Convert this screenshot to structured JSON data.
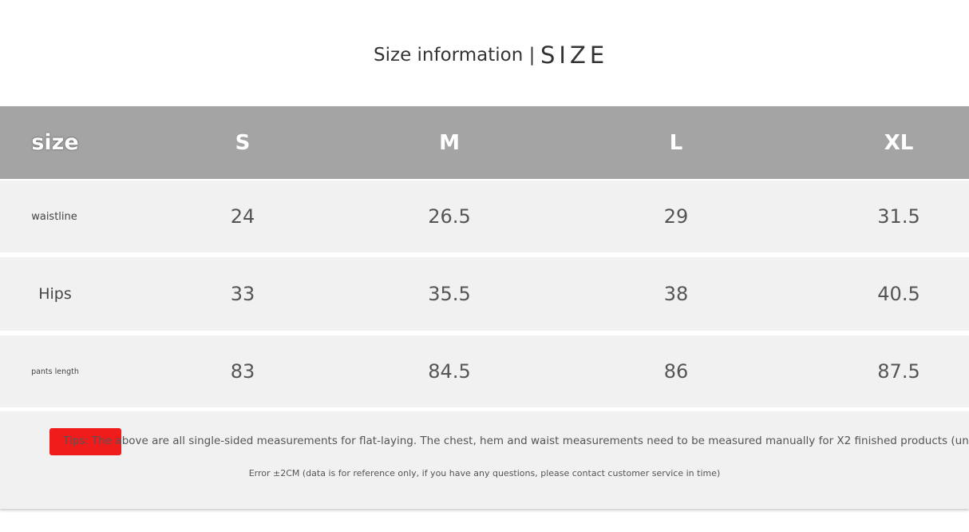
{
  "title": {
    "left": "Size information |",
    "right": "SIZE"
  },
  "header": {
    "label": "size",
    "sizes": [
      "S",
      "M",
      "L",
      "XL"
    ]
  },
  "rows": [
    {
      "label": "waistline",
      "values": [
        "24",
        "26.5",
        "29",
        "31.5"
      ]
    },
    {
      "label": "Hips",
      "values": [
        "33",
        "35.5",
        "38",
        "40.5"
      ]
    },
    {
      "label": "pants length",
      "values": [
        "83",
        "84.5",
        "86",
        "87.5"
      ]
    }
  ],
  "footer": {
    "tips": "Tips: The above are all single-sided measurements for flat-laying. The chest, hem and waist measurements need to be measured manually for X2 finished products (unit: CM)",
    "error": "Error ±2CM (data is for reference only, if you have any questions, please contact customer service in time)"
  },
  "colors": {
    "header_bg": "#a4a4a4",
    "row_bg": "#f1f1f1",
    "tips_highlight": "#f01c1c"
  }
}
